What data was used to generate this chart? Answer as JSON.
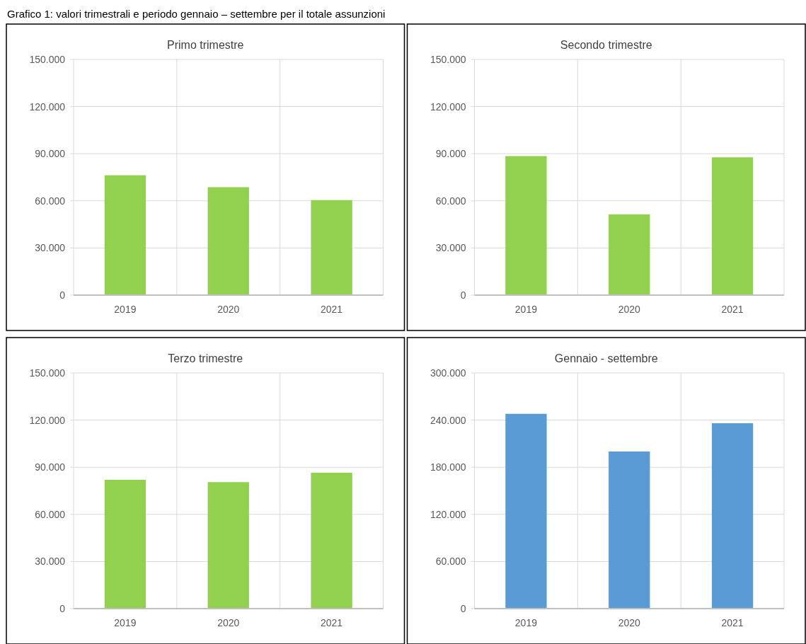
{
  "chart_data": [
    {
      "type": "bar",
      "title": "Primo  trimestre",
      "categories": [
        "2019",
        "2020",
        "2021"
      ],
      "values": [
        76300,
        68700,
        60500
      ],
      "color": "#92d050",
      "ylim": [
        0,
        150000
      ],
      "yticks": [
        {
          "value": 0,
          "label": "0"
        },
        {
          "value": 30000,
          "label": "30.000"
        },
        {
          "value": 60000,
          "label": "60.000"
        },
        {
          "value": 90000,
          "label": "90.000"
        },
        {
          "value": 120000,
          "label": "120.000"
        },
        {
          "value": 150000,
          "label": "150.000"
        }
      ],
      "grid": true,
      "annotations": [
        "Grafico 1: valori trimestrali e periodo gennaio – settembre per il totale assunzioni"
      ]
    },
    {
      "type": "bar",
      "title": "Secondo trimestre",
      "categories": [
        "2019",
        "2020",
        "2021"
      ],
      "values": [
        88500,
        51400,
        87700
      ],
      "color": "#92d050",
      "ylim": [
        0,
        150000
      ],
      "yticks": [
        {
          "value": 0,
          "label": "0"
        },
        {
          "value": 30000,
          "label": "30.000"
        },
        {
          "value": 60000,
          "label": "60.000"
        },
        {
          "value": 90000,
          "label": "90.000"
        },
        {
          "value": 120000,
          "label": "120.000"
        },
        {
          "value": 150000,
          "label": "150.000"
        }
      ],
      "grid": true
    },
    {
      "type": "bar",
      "title": "Terzo trimestre",
      "categories": [
        "2019",
        "2020",
        "2021"
      ],
      "values": [
        82000,
        80500,
        86500
      ],
      "color": "#92d050",
      "ylim": [
        0,
        150000
      ],
      "yticks": [
        {
          "value": 0,
          "label": "0"
        },
        {
          "value": 30000,
          "label": "30.000"
        },
        {
          "value": 60000,
          "label": "60.000"
        },
        {
          "value": 90000,
          "label": "90.000"
        },
        {
          "value": 120000,
          "label": "120.000"
        },
        {
          "value": 150000,
          "label": "150.000"
        }
      ],
      "grid": true
    },
    {
      "type": "bar",
      "title": "Gennaio - settembre",
      "categories": [
        "2019",
        "2020",
        "2021"
      ],
      "values": [
        248000,
        200000,
        236000
      ],
      "color": "#5b9bd5",
      "ylim": [
        0,
        300000
      ],
      "yticks": [
        {
          "value": 0,
          "label": "0"
        },
        {
          "value": 60000,
          "label": "60.000"
        },
        {
          "value": 120000,
          "label": "120.000"
        },
        {
          "value": 180000,
          "label": "180.000"
        },
        {
          "value": 240000,
          "label": "240.000"
        },
        {
          "value": 300000,
          "label": "300.000"
        }
      ],
      "grid": true
    }
  ]
}
